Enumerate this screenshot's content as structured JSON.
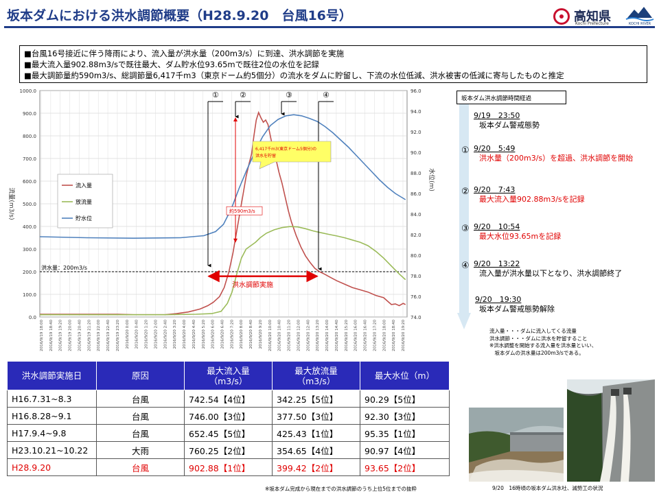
{
  "header": {
    "title": "坂本ダムにおける洪水調節概要（H28.9.20　台風16号）",
    "logo_text": "高知県",
    "logo_sub": "Kochi Prefecture",
    "river_logo_text": "KOCHI RIVER"
  },
  "summary": [
    "■台風16号接近に伴う降雨により、流入量が洪水量（200m3/s）に到達、洪水調節を実施",
    "■最大流入量902.88m3/sで既往最大、ダム貯水位93.65mで既往2位の水位を記録",
    "■最大調節量約590m3/s、総調節量6,417千m3（東京ドーム約5個分）の流水をダムに貯留し、下流の水位低減、洪水被害の低減に寄与したものと推定"
  ],
  "chart_data": {
    "type": "line",
    "ylabel": "流量(m3/s)",
    "y2label": "水位(m)",
    "ylim": [
      0,
      1000
    ],
    "y2lim": [
      74,
      96
    ],
    "yticks": [
      "0.0",
      "100.0",
      "200.0",
      "300.0",
      "400.0",
      "500.0",
      "600.0",
      "700.0",
      "800.0",
      "900.0",
      "1000.0"
    ],
    "y2ticks": [
      "74.0",
      "76.0",
      "78.0",
      "80.0",
      "82.0",
      "84.0",
      "86.0",
      "88.0",
      "90.0",
      "92.0",
      "94.0",
      "96.0"
    ],
    "x_start": "2016/9/19 18:00",
    "x_end": "2016/9/20 19:30",
    "x_labels": [
      "2016/9/19 18:00",
      "2016/9/19 18:40",
      "2016/9/19 19:20",
      "2016/9/19 20:00",
      "2016/9/19 20:40",
      "2016/9/19 21:20",
      "2016/9/19 22:00",
      "2016/9/19 22:40",
      "2016/9/19 23:20",
      "2016/9/20 0:00",
      "2016/9/20 0:40",
      "2016/9/20 1:20",
      "2016/9/20 2:00",
      "2016/9/20 2:40",
      "2016/9/20 3:20",
      "2016/9/20 4:00",
      "2016/9/20 4:40",
      "2016/9/20 5:20",
      "2016/9/20 6:00",
      "2016/9/20 6:40",
      "2016/9/20 7:20",
      "2016/9/20 8:00",
      "2016/9/20 8:40",
      "2016/9/20 9:20",
      "2016/9/20 10:00",
      "2016/9/20 10:40",
      "2016/9/20 11:20",
      "2016/9/20 12:00",
      "2016/9/20 12:40",
      "2016/9/20 13:20",
      "2016/9/20 14:00",
      "2016/9/20 14:40",
      "2016/9/20 15:20",
      "2016/9/20 16:00",
      "2016/9/20 16:40",
      "2016/9/20 17:20",
      "2016/9/20 18:00",
      "2016/9/20 18:40",
      "2016/9/20 19:20"
    ],
    "series": [
      {
        "name": "流入量",
        "color": "#c0504d",
        "axis": "left",
        "points": [
          [
            0,
            12
          ],
          [
            100,
            12
          ],
          [
            120,
            10
          ],
          [
            160,
            10
          ],
          [
            175,
            15
          ],
          [
            190,
            22
          ],
          [
            205,
            35
          ],
          [
            215,
            50
          ],
          [
            222,
            65
          ],
          [
            230,
            90
          ],
          [
            236,
            130
          ],
          [
            242,
            200
          ],
          [
            247,
            280
          ],
          [
            252,
            380
          ],
          [
            256,
            460
          ],
          [
            260,
            540
          ],
          [
            264,
            620
          ],
          [
            268,
            680
          ],
          [
            271,
            720
          ],
          [
            274,
            800
          ],
          [
            277,
            870
          ],
          [
            280,
            902.88
          ],
          [
            283,
            880
          ],
          [
            286,
            860
          ],
          [
            289,
            870
          ],
          [
            292,
            850
          ],
          [
            295,
            800
          ],
          [
            298,
            750
          ],
          [
            302,
            700
          ],
          [
            306,
            640
          ],
          [
            310,
            590
          ],
          [
            314,
            530
          ],
          [
            318,
            470
          ],
          [
            322,
            420
          ],
          [
            328,
            360
          ],
          [
            334,
            310
          ],
          [
            340,
            270
          ],
          [
            346,
            240
          ],
          [
            352,
            215
          ],
          [
            358,
            200
          ],
          [
            364,
            190
          ],
          [
            372,
            175
          ],
          [
            380,
            160
          ],
          [
            390,
            145
          ],
          [
            400,
            130
          ],
          [
            410,
            120
          ],
          [
            420,
            110
          ],
          [
            430,
            95
          ],
          [
            440,
            85
          ],
          [
            445,
            70
          ],
          [
            450,
            55
          ],
          [
            455,
            58
          ],
          [
            460,
            50
          ],
          [
            465,
            60
          ],
          [
            468,
            55
          ]
        ]
      },
      {
        "name": "放流量",
        "color": "#9bbb59",
        "axis": "left",
        "points": [
          [
            0,
            10
          ],
          [
            100,
            10
          ],
          [
            160,
            10
          ],
          [
            200,
            12
          ],
          [
            220,
            15
          ],
          [
            232,
            25
          ],
          [
            240,
            60
          ],
          [
            246,
            110
          ],
          [
            252,
            190
          ],
          [
            258,
            260
          ],
          [
            264,
            300
          ],
          [
            270,
            315
          ],
          [
            276,
            330
          ],
          [
            282,
            350
          ],
          [
            290,
            370
          ],
          [
            300,
            385
          ],
          [
            310,
            395
          ],
          [
            320,
            399.42
          ],
          [
            330,
            398
          ],
          [
            340,
            390
          ],
          [
            350,
            380
          ],
          [
            360,
            372
          ],
          [
            370,
            365
          ],
          [
            380,
            358
          ],
          [
            390,
            350
          ],
          [
            400,
            340
          ],
          [
            410,
            330
          ],
          [
            420,
            315
          ],
          [
            430,
            290
          ],
          [
            440,
            260
          ],
          [
            450,
            225
          ],
          [
            460,
            190
          ],
          [
            468,
            165
          ]
        ]
      },
      {
        "name": "貯水位",
        "color": "#4f81bd",
        "axis": "right",
        "points": [
          [
            0,
            81.8
          ],
          [
            60,
            81.7
          ],
          [
            120,
            81.65
          ],
          [
            180,
            81.7
          ],
          [
            210,
            81.9
          ],
          [
            225,
            82.3
          ],
          [
            235,
            83.0
          ],
          [
            245,
            84.5
          ],
          [
            255,
            86.5
          ],
          [
            265,
            88.3
          ],
          [
            275,
            90.0
          ],
          [
            285,
            91.5
          ],
          [
            295,
            92.6
          ],
          [
            305,
            93.2
          ],
          [
            315,
            93.55
          ],
          [
            325,
            93.65
          ],
          [
            335,
            93.55
          ],
          [
            345,
            93.3
          ],
          [
            355,
            93.0
          ],
          [
            365,
            92.5
          ],
          [
            375,
            91.9
          ],
          [
            385,
            91.2
          ],
          [
            395,
            90.5
          ],
          [
            405,
            89.7
          ],
          [
            415,
            88.9
          ],
          [
            425,
            88.1
          ],
          [
            435,
            87.3
          ],
          [
            445,
            86.6
          ],
          [
            455,
            86.0
          ],
          [
            468,
            85.4
          ]
        ]
      }
    ],
    "flood_line_label": "洪水量：200m3/s",
    "flood_line_value": 200,
    "legend": [
      "流入量",
      "放流量",
      "貯水位"
    ],
    "legend_position": "left",
    "annotations": {
      "marker1": "①",
      "marker2": "②",
      "marker3": "③",
      "marker4": "④",
      "storage_note": "6,417千m3(東京ドーム5個分)の洪水を貯留",
      "adjust_label": "約590m3/s",
      "control_label": "洪水調節実施"
    }
  },
  "timeline": {
    "title": "坂本ダム洪水調節時間経過",
    "events": [
      {
        "num": "",
        "time": "9/19　23:50",
        "desc": "坂本ダム警戒態勢",
        "red": false
      },
      {
        "num": "①",
        "time": "9/20　5:49",
        "desc": "洪水量（200m3/s）を超過、洪水調節を開始",
        "red": true
      },
      {
        "num": "②",
        "time": "9/20　7:43",
        "desc": "最大流入量902.88m3/sを記録",
        "red": true
      },
      {
        "num": "③",
        "time": "9/20　10:54",
        "desc": "最大水位93.65mを記録",
        "red": true
      },
      {
        "num": "④",
        "time": "9/20　13:22",
        "desc": "流入量が洪水量以下となり、洪水調節終了",
        "red": false
      },
      {
        "num": "",
        "time": "9/20　19:30",
        "desc": "坂本ダム警戒態勢解除",
        "red": false
      }
    ],
    "notes": [
      "流入量・・・ダムに流入してくる流量",
      "洪水調節・・・ダムに洪水を貯留すること",
      "※洪水調整を開始する流入量を洪水量といい、",
      "　坂本ダムの洪水量は200m3/sである。"
    ]
  },
  "table": {
    "headers": [
      "洪水調節実施日",
      "原因",
      "最大流入量\n（m3/s）",
      "最大放流量\n（m3/s）",
      "最大水位（m）"
    ],
    "rows": [
      [
        "H16.7.31~8.3",
        "台風",
        "742.54【4位】",
        "342.25【5位】",
        "90.29【5位】"
      ],
      [
        "H16.8.28~9.1",
        "台風",
        "746.00【3位】",
        "377.50【3位】",
        "92.30【3位】"
      ],
      [
        "H17.9.4~9.8",
        "台風",
        "652.45【5位】",
        "425.43【1位】",
        "95.35【1位】"
      ],
      [
        "H23.10.21~10.22",
        "大雨",
        "760.25【2位】",
        "354.65【4位】",
        "90.97【4位】"
      ],
      [
        "H28.9.20",
        "台風",
        "902.88【1位】",
        "399.42【2位】",
        "93.65【2位】"
      ]
    ],
    "highlight_row": 4,
    "note": "※坂本ダム完成から現在までの洪水調節のうち上位5位までの抜粋"
  },
  "photo_caption": "9/20　16時頃の坂本ダム洪水吐、減勢工の状況"
}
